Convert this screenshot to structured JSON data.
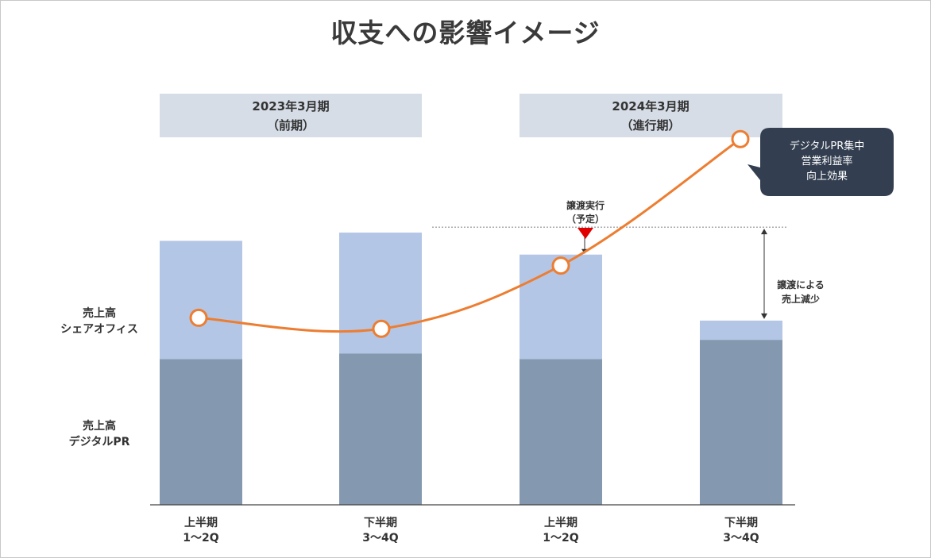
{
  "title": "収支への影響イメージ",
  "periods": [
    {
      "line1": "2023年3月期",
      "line2": "（前期）"
    },
    {
      "line1": "2024年3月期",
      "line2": "（進行期）"
    }
  ],
  "legend_labels": {
    "share_office": [
      "売上高",
      "シェアオフィス"
    ],
    "digital_pr": [
      "売上高",
      "デジタルPR"
    ]
  },
  "annotations": {
    "transfer": [
      "譲渡実行",
      "（予定）"
    ],
    "decrease": [
      "譲渡による",
      "売上減少"
    ]
  },
  "callout": [
    "デジタルPR集中",
    "営業利益率",
    "向上効果"
  ],
  "colors": {
    "share_office": "#b4c6e5",
    "digital_pr": "#8499b0",
    "line": "#ed7d31",
    "period_box": "#d6dde6",
    "marker": "#e00000",
    "callout_bg": "#333f50"
  },
  "chart_data": {
    "type": "bar",
    "stacked": true,
    "categories": [
      [
        "上半期",
        "1〜2Q"
      ],
      [
        "下半期",
        "3〜4Q"
      ],
      [
        "上半期",
        "1〜2Q"
      ],
      [
        "下半期",
        "3〜4Q"
      ]
    ],
    "series": [
      {
        "name": "売上高 デジタルPR",
        "values": [
          53,
          55,
          53,
          60
        ]
      },
      {
        "name": "売上高 シェアオフィス",
        "values": [
          43,
          44,
          38,
          7
        ]
      }
    ],
    "line": {
      "values": [
        68,
        64,
        87,
        133
      ]
    },
    "reference_line": 101,
    "ylim": [
      0,
      140
    ],
    "grid": false
  }
}
